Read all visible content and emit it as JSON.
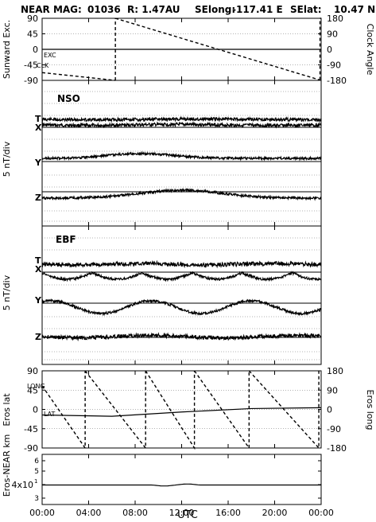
{
  "header": {
    "spacecraft": "NEAR MAG:",
    "day": "01036",
    "range": "R: 1.47AU",
    "selong_label": "SElong:",
    "selong_value": "-117.41 E",
    "selat_label": "SElat:",
    "selat_value": "10.47 N"
  },
  "x_axis": {
    "label": "UTC",
    "ticks": [
      "00:00",
      "04:00",
      "08:00",
      "12:00",
      "16:00",
      "20:00",
      "00:00"
    ],
    "hours": [
      0,
      4,
      8,
      12,
      16,
      20,
      24
    ]
  },
  "chart_data": [
    {
      "type": "line",
      "panel": "angles",
      "ylabel_left": "Sunward Exc.",
      "ylabel_right": "Clock Angle",
      "left_ticks": [
        "90",
        "45",
        "0",
        "-45",
        "-90"
      ],
      "right_ticks": [
        "180",
        "90",
        "0",
        "-90",
        "-180"
      ],
      "ylim_left": [
        -90,
        90
      ],
      "ylim_right": [
        -180,
        180
      ],
      "series_labels": [
        "EXC",
        "CLK"
      ],
      "exc": {
        "x": [
          0,
          24
        ],
        "y": [
          0,
          0
        ]
      },
      "clk_sawtooth": {
        "reset_hours": [
          6.3,
          23.9
        ],
        "start": -135,
        "max": 180,
        "min": -180
      }
    },
    {
      "type": "line",
      "panel": "NSO",
      "title": "NSO",
      "ylabel": "5 nT/div",
      "components": [
        "T",
        "X",
        "Y",
        "Z"
      ]
    },
    {
      "type": "line",
      "panel": "EBF",
      "title": "EBF",
      "ylabel": "5 nT/div",
      "components": [
        "T",
        "X",
        "Y",
        "Z"
      ]
    },
    {
      "type": "line",
      "panel": "eros",
      "ylabel_left": "Eros lat",
      "ylabel_right": "Eros long",
      "left_ticks": [
        "90",
        "45",
        "0",
        "-45",
        "-90"
      ],
      "right_ticks": [
        "180",
        "90",
        "0",
        "-90",
        "-180"
      ],
      "ylim_left": [
        -90,
        90
      ],
      "ylim_right": [
        -180,
        180
      ],
      "series_labels": [
        "LONG",
        "LAT"
      ],
      "lat": {
        "x": [
          0,
          6,
          12,
          18,
          24
        ],
        "y": [
          -13,
          -16,
          -6,
          2,
          4
        ]
      },
      "long_sawtooth": {
        "reset_hours": [
          3.7,
          8.9,
          13.1,
          17.8,
          23.8
        ],
        "start": 110
      }
    },
    {
      "type": "line",
      "panel": "distance",
      "ylabel": "Eros-NEAR km",
      "tick_label_base": "4x10",
      "tick_label_exp": "1",
      "minor_labels": [
        "6",
        "5",
        "3"
      ],
      "series": {
        "x": [
          0,
          24
        ],
        "y": [
          40,
          40
        ]
      }
    }
  ]
}
